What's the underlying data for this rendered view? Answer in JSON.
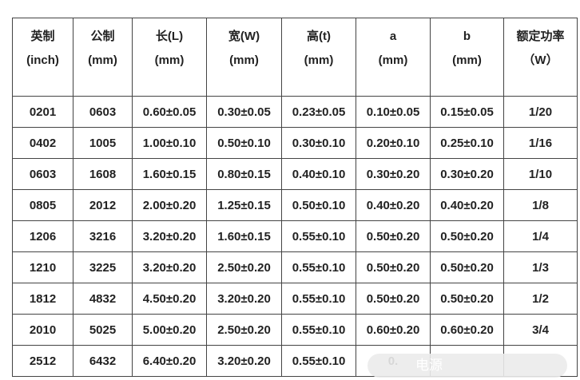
{
  "headers": [
    {
      "l1": "英制",
      "l2": "(inch)"
    },
    {
      "l1": "公制",
      "l2": "(mm)"
    },
    {
      "l1": "长(L)",
      "l2": "(mm)"
    },
    {
      "l1": "宽(W)",
      "l2": "(mm)"
    },
    {
      "l1": "高(t)",
      "l2": "(mm)"
    },
    {
      "l1": "a",
      "l2": "(mm)"
    },
    {
      "l1": "b",
      "l2": "(mm)"
    },
    {
      "l1": "额定功率",
      "l2": "（W）"
    }
  ],
  "rows": [
    [
      "0201",
      "0603",
      "0.60±0.05",
      "0.30±0.05",
      "0.23±0.05",
      "0.10±0.05",
      "0.15±0.05",
      "1/20"
    ],
    [
      "0402",
      "1005",
      "1.00±0.10",
      "0.50±0.10",
      "0.30±0.10",
      "0.20±0.10",
      "0.25±0.10",
      "1/16"
    ],
    [
      "0603",
      "1608",
      "1.60±0.15",
      "0.80±0.15",
      "0.40±0.10",
      "0.30±0.20",
      "0.30±0.20",
      "1/10"
    ],
    [
      "0805",
      "2012",
      "2.00±0.20",
      "1.25±0.15",
      "0.50±0.10",
      "0.40±0.20",
      "0.40±0.20",
      "1/8"
    ],
    [
      "1206",
      "3216",
      "3.20±0.20",
      "1.60±0.15",
      "0.55±0.10",
      "0.50±0.20",
      "0.50±0.20",
      "1/4"
    ],
    [
      "1210",
      "3225",
      "3.20±0.20",
      "2.50±0.20",
      "0.55±0.10",
      "0.50±0.20",
      "0.50±0.20",
      "1/3"
    ],
    [
      "1812",
      "4832",
      "4.50±0.20",
      "3.20±0.20",
      "0.55±0.10",
      "0.50±0.20",
      "0.50±0.20",
      "1/2"
    ],
    [
      "2010",
      "5025",
      "5.00±0.20",
      "2.50±0.20",
      "0.55±0.10",
      "0.60±0.20",
      "0.60±0.20",
      "3/4"
    ],
    [
      "2512",
      "6432",
      "6.40±0.20",
      "3.20±0.20",
      "0.55±0.10",
      "0.",
      "",
      ""
    ]
  ],
  "watermark": "电源"
}
